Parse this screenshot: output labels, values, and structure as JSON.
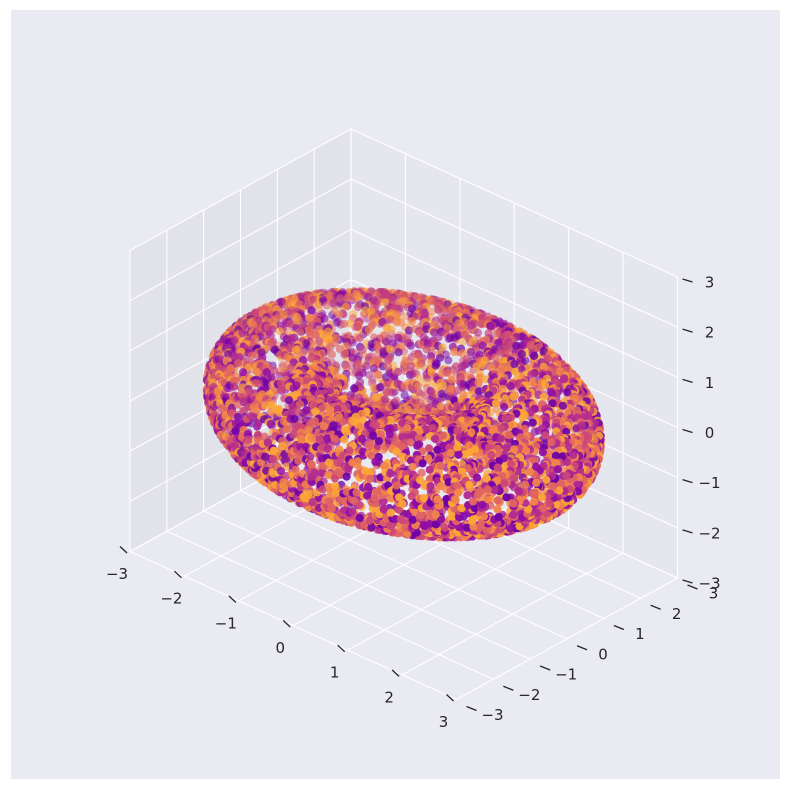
{
  "chart_data": {
    "type": "scatter",
    "projection": "3d",
    "style": "seaborn-darkgrid",
    "title": "",
    "xlabel": "",
    "ylabel": "",
    "zlabel": "",
    "xlim": [
      -3,
      3
    ],
    "ylim": [
      -3,
      3
    ],
    "zlim": [
      -3,
      3
    ],
    "grid": true,
    "colormap": "plasma",
    "surface": "torus",
    "torus_major_radius": 2,
    "torus_minor_radius": 1,
    "approx_point_count": 6000,
    "x_ticks": [
      "−3",
      "−2",
      "−1",
      "0",
      "1",
      "2",
      "3"
    ],
    "y_ticks": [
      "−3",
      "−2",
      "−1",
      "0",
      "1",
      "2",
      "3"
    ],
    "z_ticks": [
      "−3",
      "−2",
      "−1",
      "0",
      "1",
      "2",
      "3"
    ],
    "colors": {
      "figure_background": "#ffffff",
      "axes_background": "#EAEAF2",
      "pane_left": "#E2E2EA",
      "pane_right": "#E6E6EE",
      "pane_floor": "#E9E9F1",
      "grid": "#ffffff",
      "tick_text": "#262626",
      "point_colors": [
        "#6B00A8",
        "#8F0DA4",
        "#B12A90",
        "#CC4778",
        "#E16462",
        "#F2844B",
        "#FCA636"
      ]
    }
  }
}
